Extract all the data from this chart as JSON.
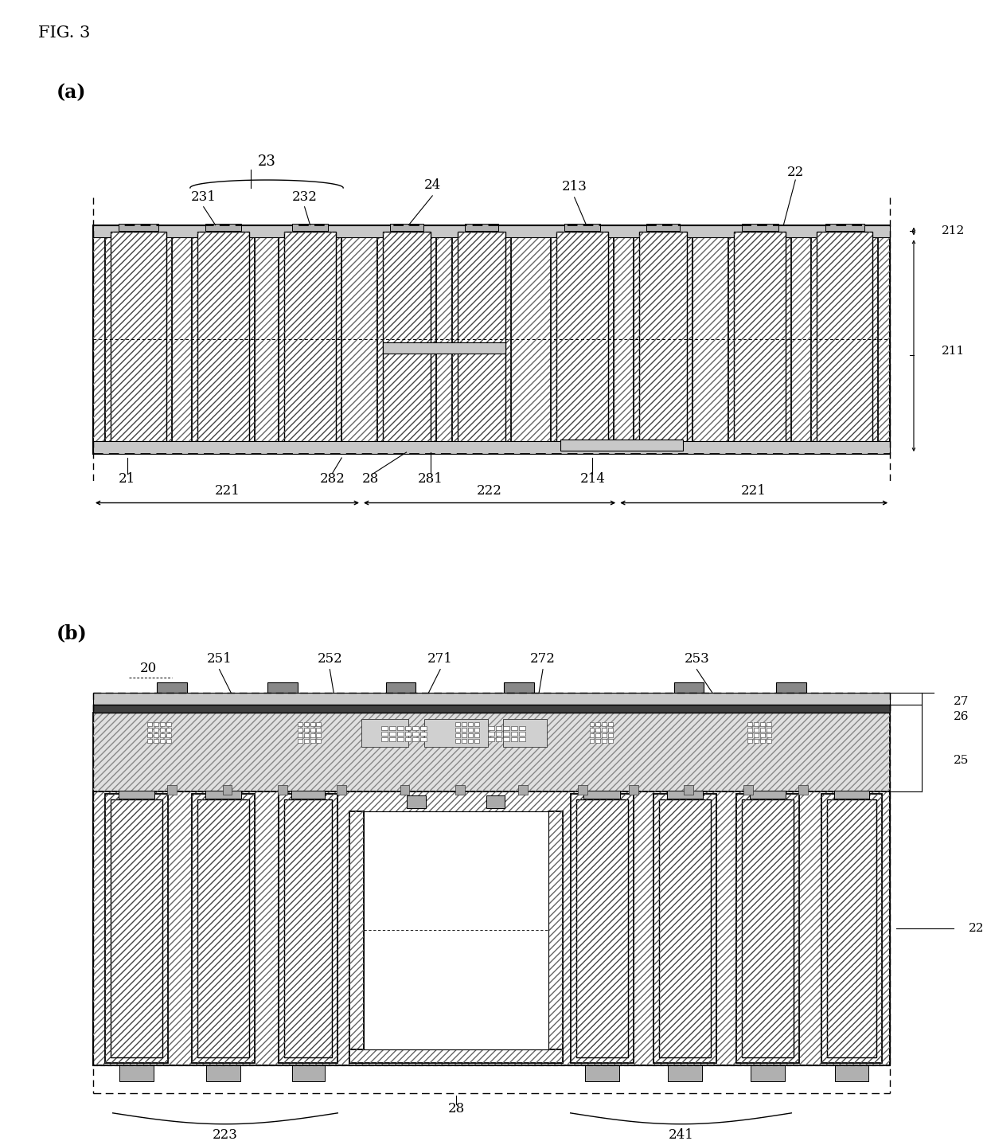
{
  "fig_label": "FIG. 3",
  "panel_a_label": "(a)",
  "panel_b_label": "(b)",
  "bg_color": "#ffffff",
  "lc": "#000000",
  "hatch_fill": "////",
  "light_gray": "#cccccc",
  "mid_gray": "#aaaaaa",
  "dark_gray": "#555555",
  "white": "#ffffff"
}
